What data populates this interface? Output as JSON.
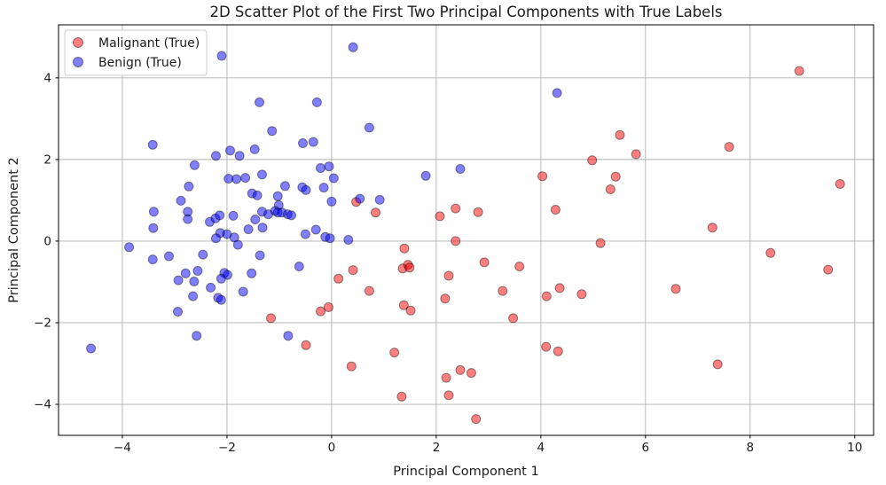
{
  "figure_title": "2D Scatter Plot of the First Two Principal Components with True Labels",
  "colors": {
    "malignant": "#ff0000",
    "benign": "#0000ff",
    "grid": "#b0b0b0",
    "spine": "#000000",
    "legend_border": "#cccccc",
    "background": "#ffffff"
  },
  "chart_data": {
    "type": "scatter",
    "title": "2D Scatter Plot of the First Two Principal Components with True Labels",
    "xlabel": "Principal Component 1",
    "ylabel": "Principal Component 2",
    "xlim": [
      -5.22,
      10.36
    ],
    "ylim": [
      -4.76,
      5.3
    ],
    "xticks": [
      -4,
      -2,
      0,
      2,
      4,
      6,
      8,
      10
    ],
    "yticks": [
      -4,
      -2,
      0,
      2,
      4
    ],
    "grid": true,
    "legend_position": "upper left",
    "marker_alpha": 0.5,
    "marker_radius": 5,
    "series": [
      {
        "name": "Malignant (True)",
        "color": "#ff0000",
        "points": [
          [
            8.94,
            4.17
          ],
          [
            5.51,
            2.6
          ],
          [
            5.82,
            2.13
          ],
          [
            4.98,
            1.98
          ],
          [
            7.6,
            2.31
          ],
          [
            5.43,
            1.58
          ],
          [
            5.33,
            1.27
          ],
          [
            9.72,
            1.4
          ],
          [
            7.28,
            0.33
          ],
          [
            8.39,
            -0.29
          ],
          [
            9.49,
            -0.7
          ],
          [
            6.58,
            -1.17
          ],
          [
            7.38,
            -3.02
          ],
          [
            5.14,
            -0.05
          ],
          [
            4.03,
            1.59
          ],
          [
            4.28,
            0.77
          ],
          [
            2.8,
            0.71
          ],
          [
            2.37,
            0.8
          ],
          [
            2.07,
            0.61
          ],
          [
            0.84,
            0.7
          ],
          [
            0.47,
            0.96
          ],
          [
            2.37,
            0.0
          ],
          [
            1.39,
            -0.18
          ],
          [
            0.41,
            -0.71
          ],
          [
            0.13,
            -0.92
          ],
          [
            1.36,
            -0.67
          ],
          [
            1.46,
            -0.58
          ],
          [
            1.49,
            -0.65
          ],
          [
            0.72,
            -1.22
          ],
          [
            2.24,
            -0.85
          ],
          [
            2.17,
            -1.41
          ],
          [
            2.92,
            -0.52
          ],
          [
            3.59,
            -0.62
          ],
          [
            3.27,
            -1.22
          ],
          [
            3.47,
            -1.89
          ],
          [
            1.38,
            -1.57
          ],
          [
            1.51,
            -1.7
          ],
          [
            -0.21,
            -1.72
          ],
          [
            -0.06,
            -1.62
          ],
          [
            4.11,
            -1.35
          ],
          [
            4.36,
            -1.15
          ],
          [
            4.78,
            -1.3
          ],
          [
            4.1,
            -2.59
          ],
          [
            4.33,
            -2.7
          ],
          [
            1.2,
            -2.73
          ],
          [
            0.38,
            -3.07
          ],
          [
            2.46,
            -3.16
          ],
          [
            2.67,
            -3.23
          ],
          [
            2.19,
            -3.35
          ],
          [
            1.34,
            -3.81
          ],
          [
            2.24,
            -3.78
          ],
          [
            2.76,
            -4.36
          ],
          [
            -1.16,
            -1.89
          ],
          [
            -0.49,
            -2.55
          ]
        ]
      },
      {
        "name": "Benign (True)",
        "color": "#0000ff",
        "points": [
          [
            -2.1,
            4.54
          ],
          [
            0.41,
            4.75
          ],
          [
            -1.38,
            3.4
          ],
          [
            -0.28,
            3.4
          ],
          [
            4.31,
            3.63
          ],
          [
            0.72,
            2.78
          ],
          [
            -1.14,
            2.7
          ],
          [
            -3.42,
            2.36
          ],
          [
            -0.55,
            2.4
          ],
          [
            -0.35,
            2.43
          ],
          [
            -1.94,
            2.22
          ],
          [
            -1.76,
            2.09
          ],
          [
            -2.21,
            2.09
          ],
          [
            -1.47,
            2.25
          ],
          [
            -2.62,
            1.86
          ],
          [
            -1.97,
            1.53
          ],
          [
            -1.82,
            1.52
          ],
          [
            -1.65,
            1.55
          ],
          [
            -1.33,
            1.63
          ],
          [
            -0.21,
            1.79
          ],
          [
            -0.05,
            1.83
          ],
          [
            0.04,
            1.54
          ],
          [
            1.8,
            1.6
          ],
          [
            2.46,
            1.77
          ],
          [
            -2.73,
            1.34
          ],
          [
            -0.89,
            1.35
          ],
          [
            -0.56,
            1.32
          ],
          [
            -0.49,
            1.25
          ],
          [
            -0.15,
            1.31
          ],
          [
            -1.52,
            1.17
          ],
          [
            -1.42,
            1.12
          ],
          [
            -1.03,
            1.1
          ],
          [
            -1.01,
            0.88
          ],
          [
            -2.88,
            0.99
          ],
          [
            0.0,
            0.97
          ],
          [
            0.54,
            1.04
          ],
          [
            0.92,
            1.01
          ],
          [
            -3.4,
            0.72
          ],
          [
            -2.75,
            0.72
          ],
          [
            -2.75,
            0.54
          ],
          [
            -1.88,
            0.62
          ],
          [
            -1.46,
            0.53
          ],
          [
            -1.33,
            0.72
          ],
          [
            -1.21,
            0.66
          ],
          [
            -1.08,
            0.74
          ],
          [
            -1.03,
            0.7
          ],
          [
            -0.95,
            0.7
          ],
          [
            -0.84,
            0.66
          ],
          [
            -0.77,
            0.63
          ],
          [
            -2.33,
            0.47
          ],
          [
            -2.22,
            0.56
          ],
          [
            -2.14,
            0.63
          ],
          [
            -2.13,
            0.2
          ],
          [
            -2.0,
            0.17
          ],
          [
            -2.21,
            0.07
          ],
          [
            -1.86,
            0.09
          ],
          [
            -3.41,
            0.32
          ],
          [
            -1.59,
            0.29
          ],
          [
            -1.32,
            0.33
          ],
          [
            -0.5,
            0.17
          ],
          [
            -0.3,
            0.28
          ],
          [
            -0.12,
            0.1
          ],
          [
            -0.03,
            0.07
          ],
          [
            0.32,
            0.03
          ],
          [
            -1.79,
            -0.09
          ],
          [
            -3.87,
            -0.15
          ],
          [
            -3.42,
            -0.45
          ],
          [
            -3.11,
            -0.37
          ],
          [
            -2.46,
            -0.33
          ],
          [
            -1.37,
            -0.35
          ],
          [
            -0.62,
            -0.62
          ],
          [
            -2.79,
            -0.79
          ],
          [
            -2.56,
            -0.73
          ],
          [
            -2.93,
            -0.96
          ],
          [
            -2.63,
            -0.99
          ],
          [
            -2.05,
            -0.78
          ],
          [
            -1.99,
            -0.83
          ],
          [
            -2.11,
            -0.92
          ],
          [
            -1.53,
            -0.79
          ],
          [
            -2.31,
            -1.14
          ],
          [
            -1.69,
            -1.24
          ],
          [
            -2.65,
            -1.35
          ],
          [
            -2.17,
            -1.39
          ],
          [
            -2.11,
            -1.44
          ],
          [
            -2.94,
            -1.73
          ],
          [
            -2.58,
            -2.32
          ],
          [
            -0.83,
            -2.32
          ],
          [
            -4.6,
            -2.63
          ]
        ]
      }
    ]
  }
}
